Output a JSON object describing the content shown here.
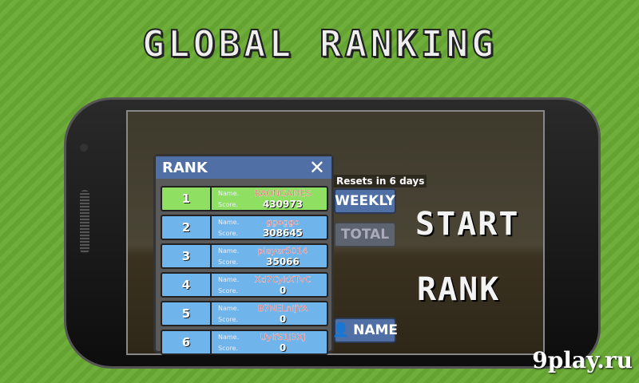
{
  "title": "GLOBAL RANKING",
  "menu": {
    "start": "START",
    "rank": "RANK"
  },
  "panel": {
    "title": "RANK",
    "close": "✕",
    "name_label": "Name.",
    "score_label": "Score.",
    "rows": [
      {
        "rank": "1",
        "name": "RAONGAMES",
        "score": "430973"
      },
      {
        "rank": "2",
        "name": "ggoggo",
        "score": "308645"
      },
      {
        "rank": "3",
        "name": "player5014",
        "score": "35066"
      },
      {
        "rank": "4",
        "name": "Xd7CykXTvC",
        "score": "0"
      },
      {
        "rank": "5",
        "name": "B7NELnijYA",
        "score": "0"
      },
      {
        "rank": "6",
        "name": "UylfS1J3Xj",
        "score": "0"
      }
    ]
  },
  "resets": "Resets in 6 days",
  "buttons": {
    "weekly": "WEEKLY",
    "total": "TOTAL",
    "name": "NAME"
  },
  "watermark": "9play.ru",
  "colors": {
    "highlight": "#8fe062",
    "row": "#6fb4ea",
    "header": "#4f6fa5"
  }
}
